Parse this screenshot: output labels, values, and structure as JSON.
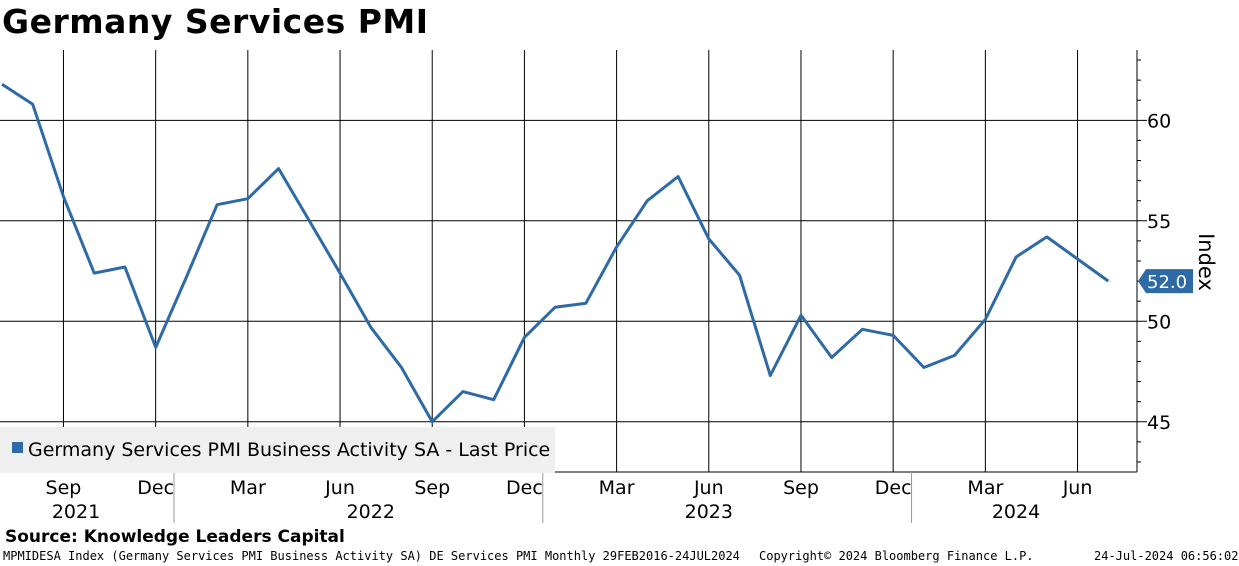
{
  "header": {
    "title": "Germany Services PMI"
  },
  "chart_data": {
    "type": "line",
    "title": "Germany Services PMI",
    "ylabel": "Index",
    "ylim": [
      42.5,
      63.5
    ],
    "y_ticks": [
      45,
      50,
      55,
      60
    ],
    "grid": true,
    "legend_position": "bottom-left",
    "x_ticks": [
      "Sep",
      "Dec",
      "Mar",
      "Jun",
      "Sep",
      "Dec",
      "Mar",
      "Jun",
      "Sep",
      "Dec",
      "Mar",
      "Jun"
    ],
    "x_tick_dates": [
      "2021-09",
      "2021-12",
      "2022-03",
      "2022-06",
      "2022-09",
      "2022-12",
      "2023-03",
      "2023-06",
      "2023-09",
      "2023-12",
      "2024-03",
      "2024-06"
    ],
    "years": [
      "2021",
      "2022",
      "2023",
      "2024"
    ],
    "series": [
      {
        "name": "Germany Services PMI Business Activity SA - Last Price",
        "color": "#2e6aa6",
        "x": [
          "2021-07",
          "2021-08",
          "2021-09",
          "2021-10",
          "2021-11",
          "2021-12",
          "2022-01",
          "2022-02",
          "2022-03",
          "2022-04",
          "2022-05",
          "2022-06",
          "2022-07",
          "2022-08",
          "2022-09",
          "2022-10",
          "2022-11",
          "2022-12",
          "2023-01",
          "2023-02",
          "2023-03",
          "2023-04",
          "2023-05",
          "2023-06",
          "2023-07",
          "2023-08",
          "2023-09",
          "2023-10",
          "2023-11",
          "2023-12",
          "2024-01",
          "2024-02",
          "2024-03",
          "2024-04",
          "2024-05",
          "2024-06",
          "2024-07"
        ],
        "values": [
          61.8,
          60.8,
          56.2,
          52.4,
          52.7,
          48.7,
          52.2,
          55.8,
          56.1,
          57.6,
          55.0,
          52.4,
          49.7,
          47.7,
          45.0,
          46.5,
          46.1,
          49.2,
          50.7,
          50.9,
          53.7,
          56.0,
          57.2,
          54.1,
          52.3,
          47.3,
          50.3,
          48.2,
          49.6,
          49.3,
          47.7,
          48.3,
          50.1,
          53.2,
          54.2,
          53.1,
          52.0
        ]
      }
    ],
    "last_value_label": "52.0"
  },
  "legend": {
    "entry": "Germany Services PMI Business Activity SA - Last Price"
  },
  "source": "Source: Knowledge Leaders Capital",
  "footer": {
    "left": "MPMIDESA Index (Germany Services PMI Business Activity SA) DE Services PMI  Monthly 29FEB2016-24JUL2024",
    "middle": "Copyright© 2024 Bloomberg Finance L.P.",
    "right": "24-Jul-2024 06:56:02"
  }
}
